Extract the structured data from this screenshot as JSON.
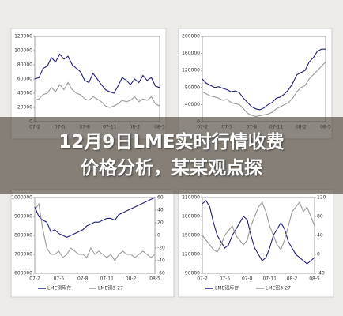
{
  "headline": "12月9日LME实时行情收费价格分析，某某观点探",
  "chart_data": [
    {
      "type": "line",
      "categories": [
        "07-2",
        null,
        null,
        null,
        null,
        null,
        "07-5",
        null,
        null,
        null,
        null,
        null,
        "07-8",
        null,
        null,
        null,
        null,
        null,
        "07-11",
        null,
        null,
        null,
        null,
        null,
        "08-2",
        null,
        null,
        null,
        null,
        null,
        "08-5"
      ],
      "ylim": [
        0,
        120000
      ],
      "yticks": [
        0,
        20000,
        40000,
        60000,
        80000,
        100000,
        120000
      ],
      "series": [
        {
          "color": "#1f1f7a",
          "values": [
            60000,
            62000,
            75000,
            78000,
            90000,
            84000,
            95000,
            88000,
            92000,
            80000,
            75000,
            70000,
            58000,
            55000,
            68000,
            60000,
            52000,
            45000,
            42000,
            40000,
            50000,
            62000,
            58000,
            52000,
            60000,
            55000,
            65000,
            58000,
            62000,
            50000,
            48000
          ]
        },
        {
          "color": "#9a9a9a",
          "values": [
            30000,
            32000,
            38000,
            40000,
            48000,
            42000,
            52000,
            45000,
            55000,
            45000,
            40000,
            38000,
            32000,
            30000,
            35000,
            32000,
            28000,
            22000,
            20000,
            22000,
            25000,
            30000,
            28000,
            30000,
            35000,
            28000,
            32000,
            30000,
            35000,
            25000,
            22000
          ]
        }
      ]
    },
    {
      "type": "line",
      "categories": [
        "07-2",
        null,
        null,
        null,
        null,
        null,
        "07-5",
        null,
        null,
        null,
        null,
        null,
        "07-8",
        null,
        null,
        null,
        null,
        null,
        "07-11",
        null,
        null,
        null,
        null,
        null,
        "08-2",
        null,
        null,
        null,
        null,
        null,
        "08-5"
      ],
      "ylim": [
        0,
        200000
      ],
      "yticks": [
        0,
        40000,
        80000,
        120000,
        160000,
        200000
      ],
      "series": [
        {
          "color": "#1f1f7a",
          "values": [
            100000,
            90000,
            85000,
            80000,
            82000,
            78000,
            75000,
            70000,
            72000,
            68000,
            55000,
            45000,
            35000,
            30000,
            28000,
            32000,
            40000,
            45000,
            55000,
            58000,
            65000,
            75000,
            90000,
            110000,
            115000,
            120000,
            140000,
            150000,
            165000,
            170000,
            170000
          ]
        },
        {
          "color": "#9a9a9a",
          "values": [
            70000,
            65000,
            60000,
            58000,
            55000,
            50000,
            52000,
            45000,
            42000,
            40000,
            30000,
            20000,
            15000,
            12000,
            14000,
            16000,
            18000,
            22000,
            30000,
            35000,
            40000,
            45000,
            55000,
            70000,
            80000,
            85000,
            100000,
            110000,
            120000,
            130000,
            140000
          ]
        }
      ]
    },
    {
      "type": "line",
      "categories": [
        "07-2",
        null,
        null,
        null,
        null,
        null,
        "07-5",
        null,
        null,
        null,
        null,
        null,
        "07-8",
        null,
        null,
        null,
        null,
        null,
        "07-11",
        null,
        null,
        null,
        null,
        null,
        "08-2",
        null,
        null,
        null,
        null,
        null,
        "08-5"
      ],
      "ylim": [
        600000,
        1000000
      ],
      "yticks": [
        600000,
        700000,
        800000,
        900000,
        1000000
      ],
      "y2lim": [
        -60,
        60
      ],
      "y2ticks": [
        -60,
        -40,
        -20,
        0,
        20,
        40,
        60
      ],
      "series": [
        {
          "name": "LME铜库存",
          "color": "#1f1f7a",
          "values": [
            950000,
            900000,
            880000,
            870000,
            820000,
            830000,
            810000,
            800000,
            790000,
            800000,
            810000,
            820000,
            830000,
            850000,
            860000,
            870000,
            870000,
            880000,
            890000,
            890000,
            880000,
            910000,
            920000,
            930000,
            940000,
            950000,
            960000,
            970000,
            980000,
            990000,
            1000000
          ]
        },
        {
          "name": "LME铜3-27",
          "color": "#9a9a9a",
          "axis": "y2",
          "values": [
            40,
            50,
            10,
            -20,
            -30,
            -30,
            -25,
            -35,
            -30,
            -20,
            -25,
            -30,
            -30,
            -35,
            -20,
            -30,
            -25,
            -30,
            -35,
            -30,
            -40,
            -30,
            -25,
            -30,
            -30,
            -35,
            -30,
            -25,
            -30,
            -35,
            -30
          ]
        }
      ]
    },
    {
      "type": "line",
      "categories": [
        "07-2",
        null,
        null,
        null,
        null,
        null,
        "07-5",
        null,
        null,
        null,
        null,
        null,
        "07-8",
        null,
        null,
        null,
        null,
        null,
        "07-11",
        null,
        null,
        null,
        null,
        null,
        "08-2",
        null,
        null,
        null,
        null,
        null,
        "08-5"
      ],
      "ylim": [
        90000,
        210000
      ],
      "yticks": [
        90000,
        120000,
        150000,
        180000,
        210000
      ],
      "y2lim": [
        -40,
        120
      ],
      "y2ticks": [
        -40,
        0,
        40,
        80,
        120
      ],
      "series": [
        {
          "name": "LME铝库存",
          "color": "#1f1f7a",
          "values": [
            200000,
            205000,
            195000,
            170000,
            150000,
            140000,
            130000,
            135000,
            150000,
            160000,
            170000,
            180000,
            175000,
            150000,
            130000,
            120000,
            110000,
            115000,
            130000,
            150000,
            160000,
            170000,
            160000,
            140000,
            130000,
            120000,
            115000,
            110000,
            105000,
            110000,
            115000
          ]
        },
        {
          "name": "LME铝3-27",
          "color": "#9a9a9a",
          "axis": "y2",
          "values": [
            40,
            30,
            20,
            10,
            5,
            20,
            40,
            50,
            60,
            40,
            30,
            20,
            30,
            60,
            80,
            100,
            110,
            90,
            60,
            40,
            20,
            10,
            30,
            60,
            90,
            100,
            110,
            90,
            100,
            80,
            60
          ]
        }
      ]
    }
  ]
}
